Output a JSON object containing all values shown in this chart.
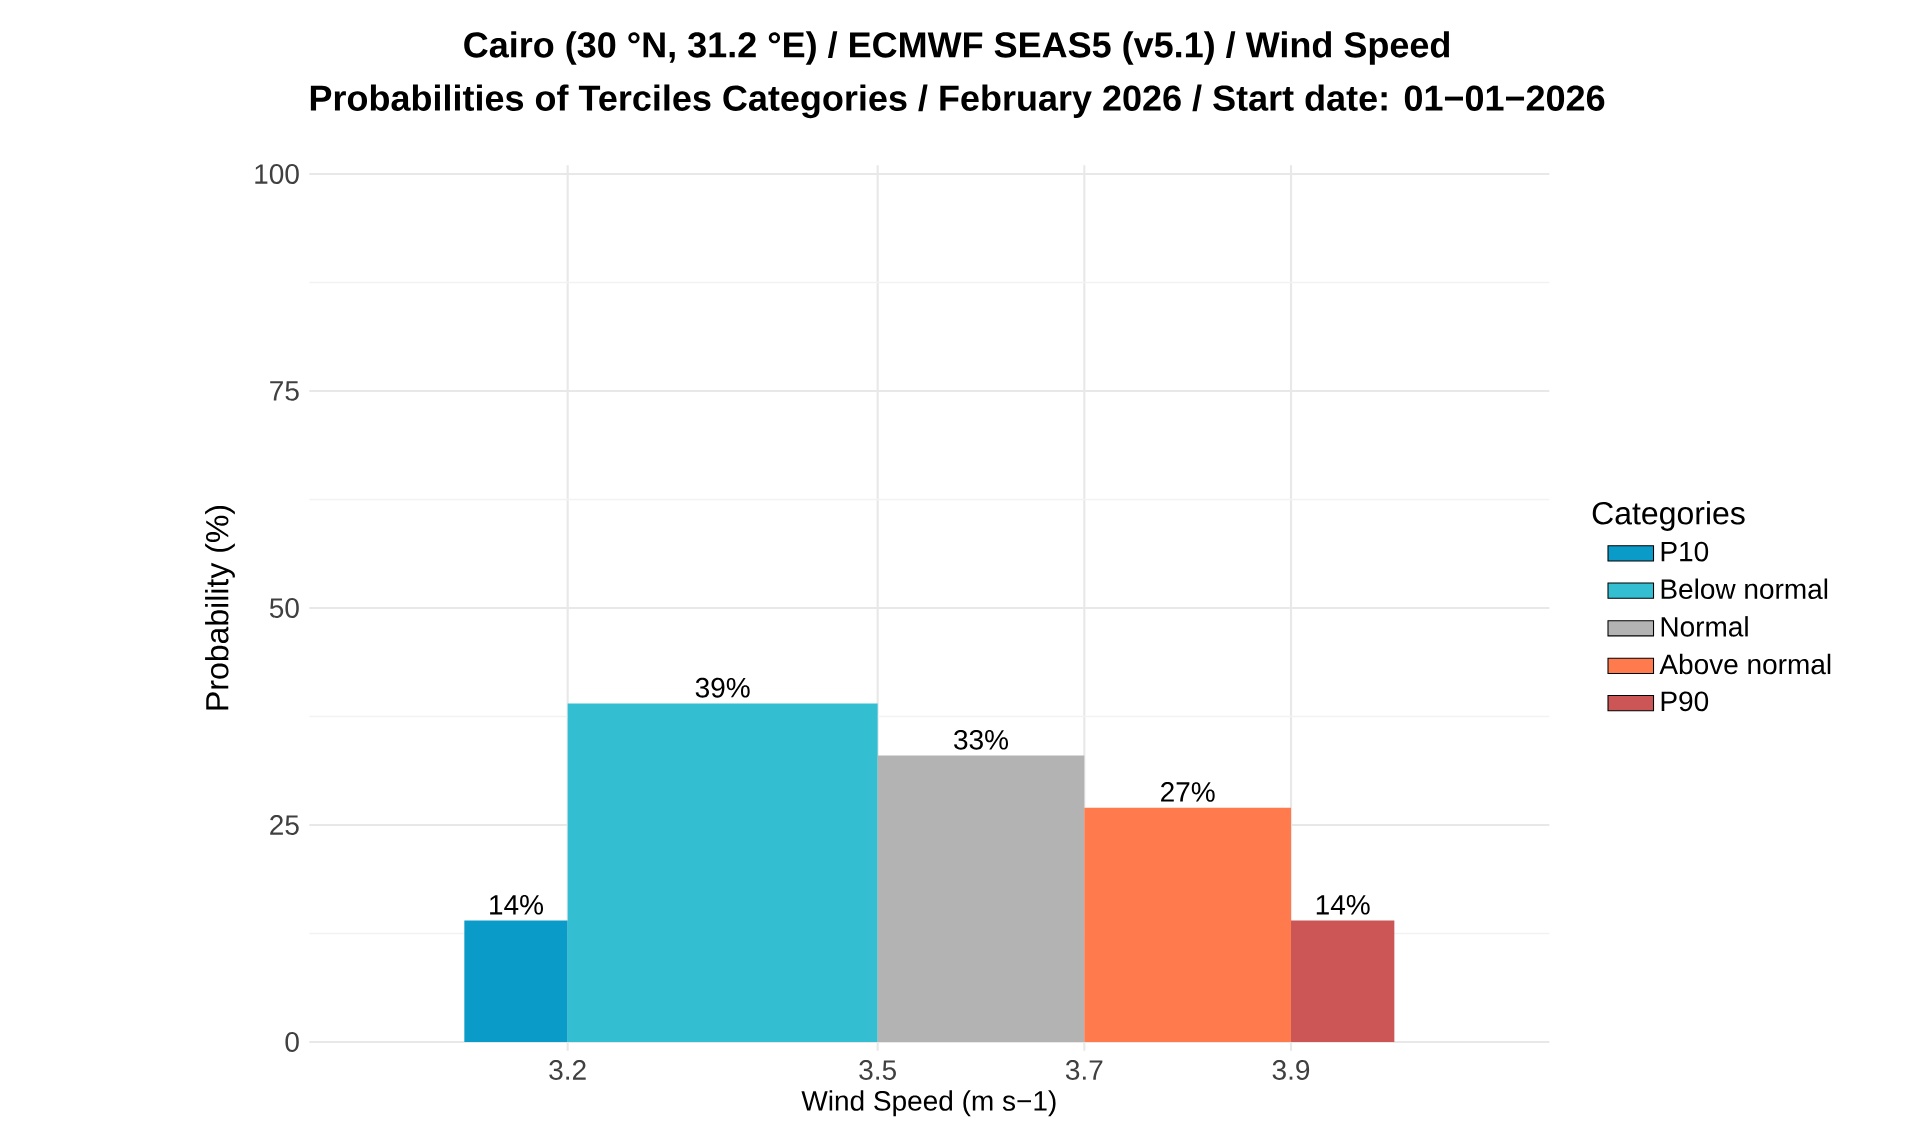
{
  "chart_data": {
    "type": "histogram",
    "title": "Cairo (30 °N, 31.2 °E) / ECMWF SEAS5 (v5.1) / Wind Speed",
    "subtitle": "Probabilities of Terciles Categories / February 2026 / Start date: 01−01−2026",
    "xlabel": "Wind Speed (m s−1)",
    "ylabel": "Probability (%)",
    "legend_title": "Categories",
    "bins": [
      3.1,
      3.2,
      3.5,
      3.7,
      3.9,
      4.0
    ],
    "series": [
      {
        "name": "P10",
        "color": "#0b9bc9",
        "values": [
          14,
          null,
          null,
          null,
          null
        ],
        "value_labels": [
          "14%",
          null,
          null,
          null,
          null
        ]
      },
      {
        "name": "Below normal",
        "color": "#33bfd1",
        "values": [
          null,
          39,
          null,
          null,
          null
        ],
        "value_labels": [
          null,
          "39%",
          null,
          null,
          null
        ]
      },
      {
        "name": "Normal",
        "color": "#b3b3b3",
        "values": [
          null,
          null,
          33,
          null,
          null
        ],
        "value_labels": [
          null,
          null,
          "33%",
          null,
          null
        ]
      },
      {
        "name": "Above normal",
        "color": "#ff7a4d",
        "values": [
          null,
          null,
          null,
          27,
          null
        ],
        "value_labels": [
          null,
          null,
          null,
          "27%",
          null
        ]
      },
      {
        "name": "P90",
        "color": "#cc5555",
        "values": [
          null,
          null,
          null,
          null,
          14
        ],
        "value_labels": [
          null,
          null,
          null,
          null,
          "14%"
        ]
      }
    ],
    "xlim": [
      2.95,
      4.15
    ],
    "xticks": [
      3.2,
      3.5,
      3.7,
      3.9
    ],
    "ylim": [
      -1,
      101
    ],
    "yticks": [
      0,
      25,
      50,
      75,
      100
    ],
    "grid": true,
    "legend": "right"
  }
}
